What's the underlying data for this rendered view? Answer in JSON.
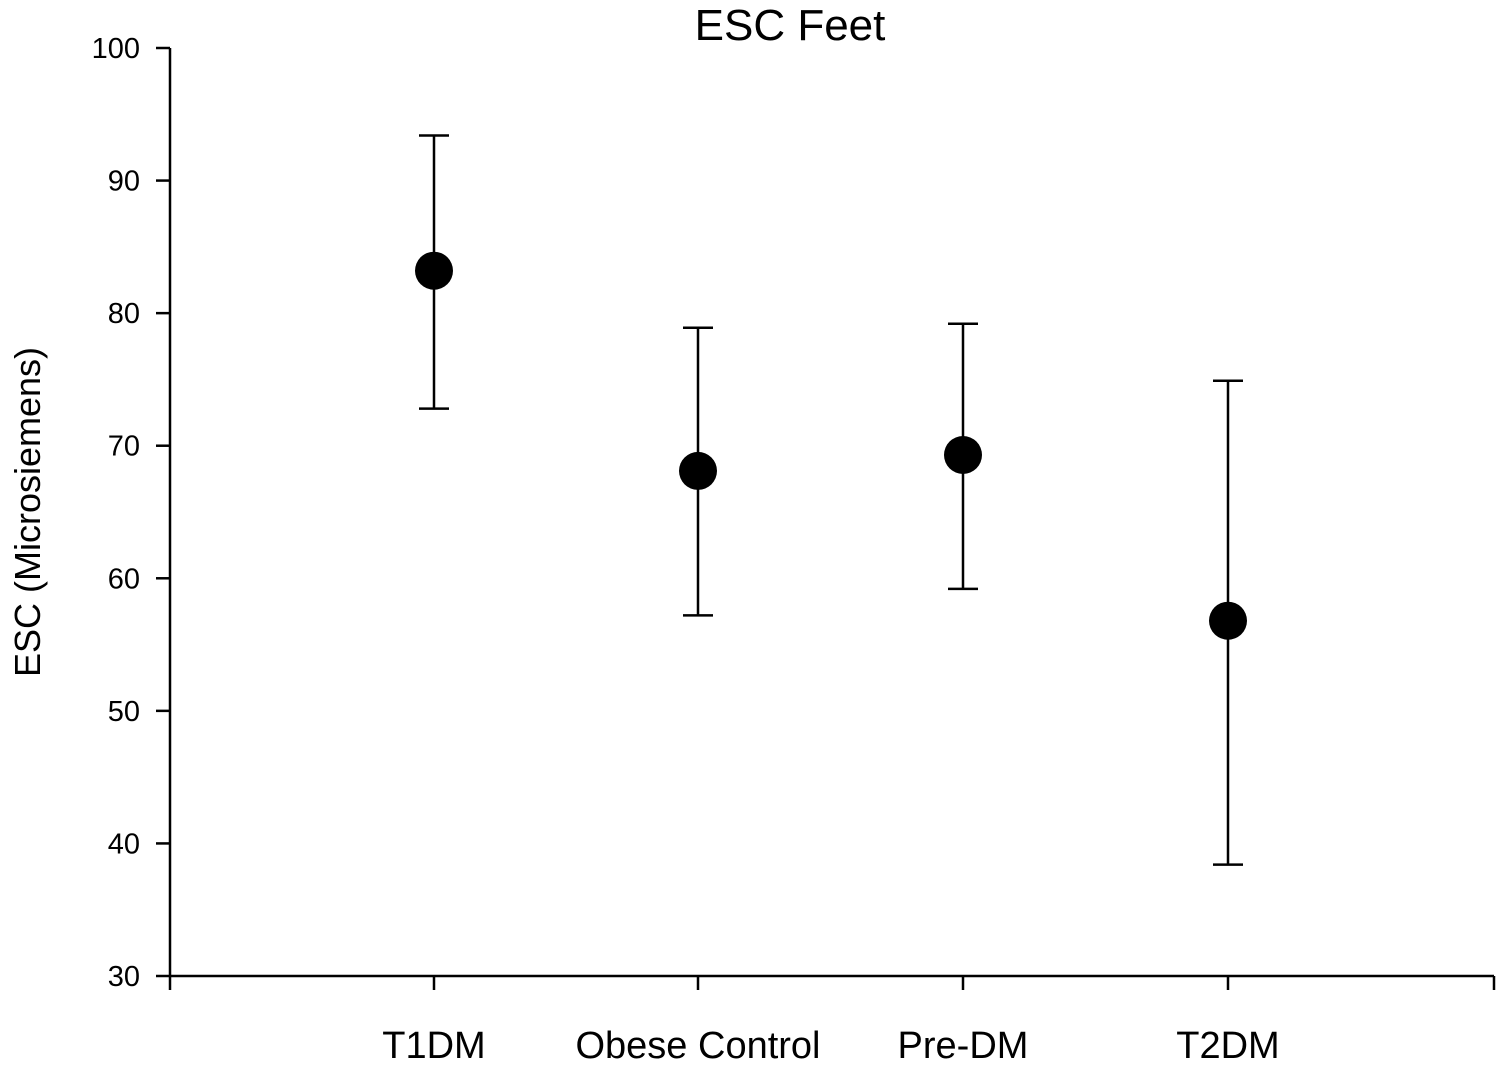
{
  "chart_data": {
    "type": "scatter",
    "title": "ESC Feet",
    "xlabel": "",
    "ylabel": "ESC (Microsiemens)",
    "ylim": [
      30,
      100
    ],
    "yticks": [
      30,
      40,
      50,
      60,
      70,
      80,
      90,
      100
    ],
    "ytick_labels": [
      "30",
      "40",
      "50",
      "60",
      "70",
      "80",
      "90",
      "100"
    ],
    "categories": [
      "T1DM",
      "Obese Control",
      "Pre-DM",
      "T2DM"
    ],
    "values": [
      83.2,
      68.1,
      69.3,
      56.8
    ],
    "error_low": [
      72.8,
      57.2,
      59.2,
      38.4
    ],
    "error_high": [
      93.4,
      78.9,
      79.2,
      74.9
    ],
    "marker_color": "#000000",
    "grid": false,
    "legend": "none"
  }
}
